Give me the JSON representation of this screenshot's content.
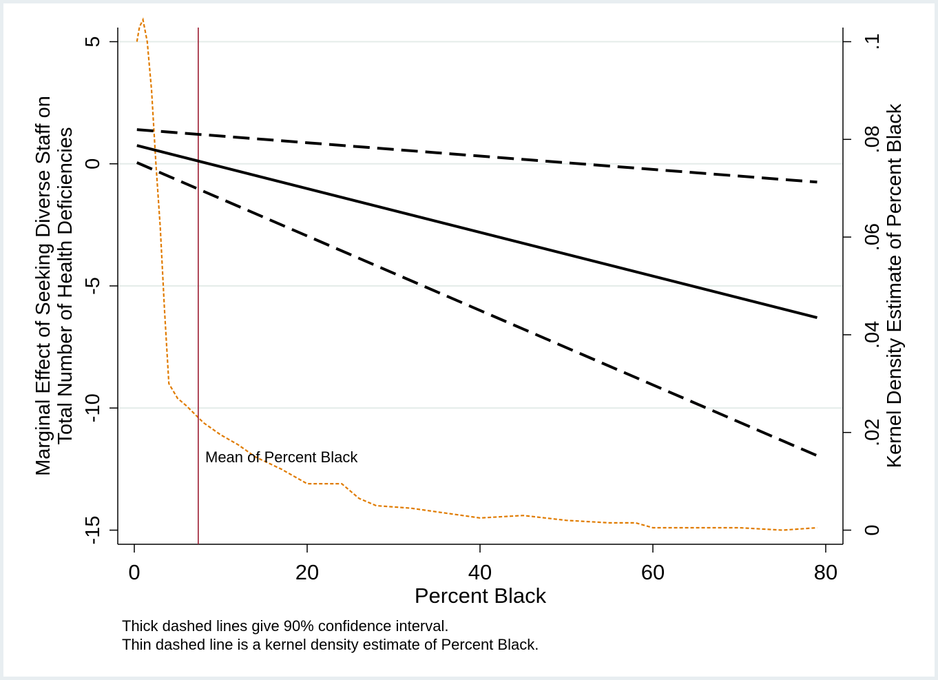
{
  "chart_data": {
    "type": "line",
    "title": "",
    "xlabel": "Percent Black",
    "ylabel_lines": [
      "Marginal Effect of Seeking Diverse Staff on",
      "Total Number of Health Deficiencies"
    ],
    "y2label": "Kernel Density Estimate of Percent Black",
    "xlim": [
      0,
      80
    ],
    "ylim": [
      -15,
      5
    ],
    "y2lim": [
      0,
      0.1
    ],
    "x_ticks": [
      0,
      20,
      40,
      60,
      80
    ],
    "x_tick_labels": [
      "0",
      "20",
      "40",
      "60",
      "80"
    ],
    "y_ticks": [
      -15,
      -10,
      -5,
      0,
      5
    ],
    "y_tick_labels": [
      "-15",
      "-10",
      "-5",
      "0",
      "5"
    ],
    "y2_ticks": [
      0,
      0.02,
      0.04,
      0.06,
      0.08,
      0.1
    ],
    "y2_tick_labels": [
      "0",
      ".02",
      ".04",
      ".06",
      ".08",
      ".1"
    ],
    "grid": "horizontal",
    "series": [
      {
        "x": [
          0.3,
          79
        ],
        "y": [
          0.75,
          -6.3
        ]
      },
      {
        "x": [
          0.3,
          79
        ],
        "y": [
          1.4,
          -0.75
        ]
      },
      {
        "x": [
          0.3,
          79
        ],
        "y": [
          0.05,
          -11.95
        ]
      },
      {
        "axis": "y2",
        "x": [
          0.3,
          0.6,
          1.0,
          1.5,
          2.0,
          2.5,
          3.0,
          3.5,
          4.0,
          5.0,
          6.0,
          8.0,
          10.0,
          12.0,
          14.0,
          17.0,
          20.0,
          22.0,
          24.0,
          26.0,
          28.0,
          32.0,
          36.0,
          40.0,
          45.0,
          50.0,
          55.0,
          58.0,
          60.0,
          65.0,
          70.0,
          75.0,
          79.0
        ],
        "y": [
          0.1,
          0.103,
          0.1045,
          0.1,
          0.09,
          0.075,
          0.062,
          0.045,
          0.03,
          0.027,
          0.0255,
          0.022,
          0.0195,
          0.0175,
          0.015,
          0.0125,
          0.0095,
          0.0095,
          0.0095,
          0.0065,
          0.005,
          0.0045,
          0.0035,
          0.0025,
          0.003,
          0.002,
          0.0015,
          0.0015,
          0.0005,
          0.0005,
          0.0005,
          0.0,
          0.0005
        ]
      }
    ],
    "vline": {
      "x": 7.4,
      "label": "Mean of Percent Black",
      "color": "#9b1b30"
    },
    "colors": {
      "effect": "#000000",
      "ci": "#000000",
      "density": "#e07b00",
      "grid": "#e4ece9",
      "frame": "#e8eef1"
    },
    "notes": [
      "Thick dashed lines give 90% confidence interval.",
      "Thin dashed line is a kernel density estimate of Percent Black."
    ]
  }
}
